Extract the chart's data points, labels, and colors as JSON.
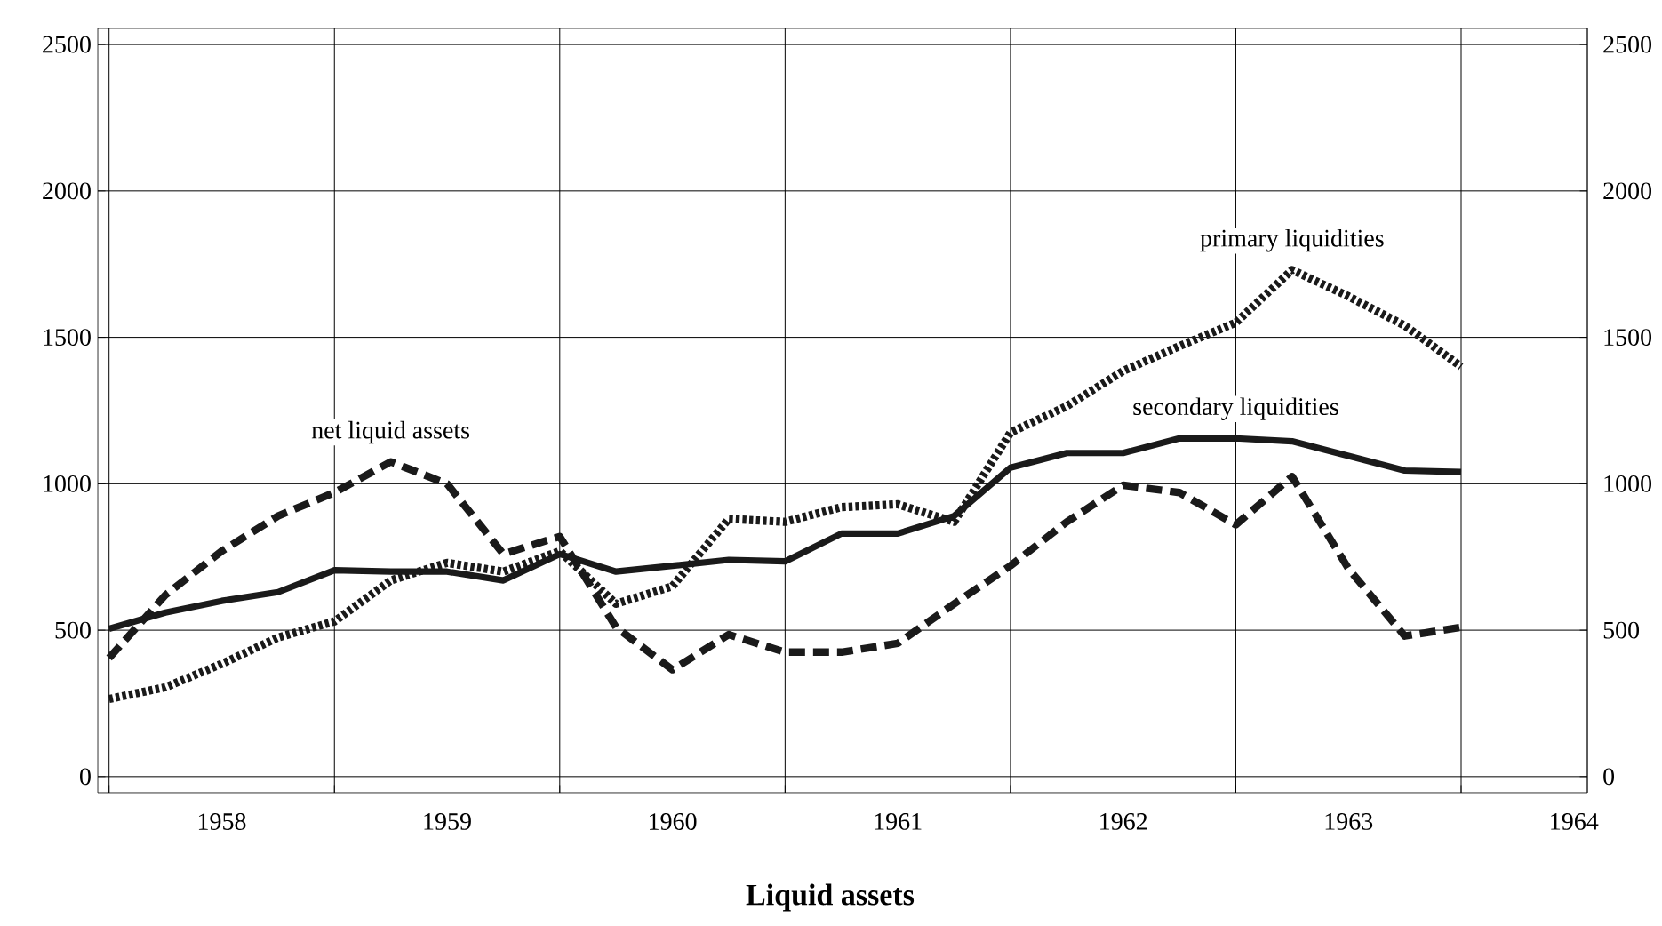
{
  "chart_data": {
    "type": "line",
    "title": "Liquid assets",
    "x": [
      1958.0,
      1958.25,
      1958.5,
      1958.75,
      1959.0,
      1959.25,
      1959.5,
      1959.75,
      1960.0,
      1960.25,
      1960.5,
      1960.75,
      1961.0,
      1961.25,
      1961.5,
      1961.75,
      1962.0,
      1962.25,
      1962.5,
      1962.75,
      1963.0,
      1963.25,
      1963.5,
      1963.75,
      1964.0
    ],
    "series": [
      {
        "name": "net liquid assets",
        "color": "#1a1a1a",
        "line_style": "dashed",
        "values": [
          405,
          620,
          770,
          890,
          970,
          1075,
          1000,
          760,
          820,
          510,
          365,
          485,
          425,
          425,
          455,
          590,
          720,
          870,
          995,
          970,
          860,
          1025,
          710,
          480,
          510
        ]
      },
      {
        "name": "primary liquidities",
        "color": "#1a1a1a",
        "line_style": "dotted",
        "values": [
          265,
          305,
          385,
          475,
          530,
          670,
          730,
          700,
          770,
          590,
          650,
          880,
          870,
          920,
          930,
          870,
          1175,
          1265,
          1385,
          1470,
          1550,
          1730,
          1640,
          1540,
          1400
        ]
      },
      {
        "name": "secondary liquidities",
        "color": "#1a1a1a",
        "line_style": "solid",
        "values": [
          505,
          560,
          600,
          630,
          705,
          700,
          700,
          670,
          760,
          700,
          720,
          740,
          735,
          830,
          830,
          890,
          1055,
          1105,
          1105,
          1155,
          1155,
          1145,
          1095,
          1045,
          1040
        ]
      }
    ],
    "xlim": [
      1957.95,
      1964.56
    ],
    "xticks": [
      {
        "value": 1958,
        "label": null
      },
      {
        "value": 1959,
        "label": null
      },
      {
        "value": 1960,
        "label": null
      },
      {
        "value": 1961,
        "label": null
      },
      {
        "value": 1962,
        "label": null
      },
      {
        "value": 1963,
        "label": null
      },
      {
        "value": 1964,
        "label": null
      },
      {
        "value": 1958.5,
        "label": "1958"
      },
      {
        "value": 1959.5,
        "label": "1959"
      },
      {
        "value": 1960.5,
        "label": "1960"
      },
      {
        "value": 1961.5,
        "label": "1961"
      },
      {
        "value": 1962.5,
        "label": "1962"
      },
      {
        "value": 1963.5,
        "label": "1963"
      },
      {
        "value": 1964.5,
        "label": "1964"
      }
    ],
    "ylim": [
      -55,
      2555
    ],
    "yticks": [
      0,
      500,
      1000,
      1500,
      2000,
      2500
    ],
    "y2lim": [
      -55,
      2555
    ],
    "y2ticks": [
      0,
      500,
      1000,
      1500,
      2000,
      2500
    ],
    "grid": true,
    "marker": "none"
  }
}
